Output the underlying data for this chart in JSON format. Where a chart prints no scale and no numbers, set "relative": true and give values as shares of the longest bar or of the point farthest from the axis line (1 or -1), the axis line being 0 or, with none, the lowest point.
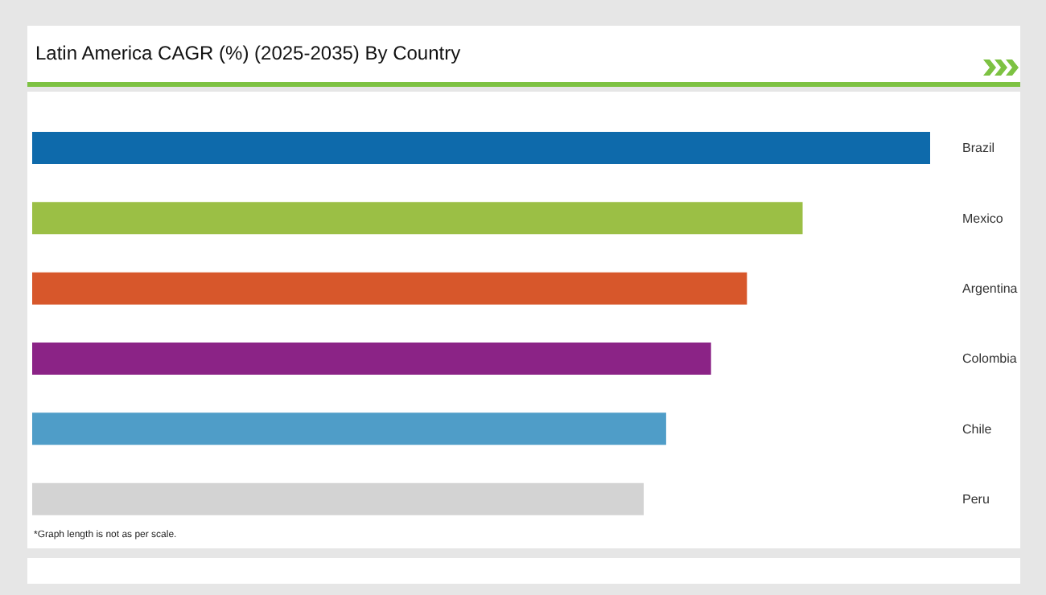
{
  "chart_data": {
    "type": "bar",
    "orientation": "horizontal",
    "relative": true,
    "title": "Latin America CAGR (%) (2025-2035) By Country",
    "categories": [
      "Brazil",
      "Mexico",
      "Argentina",
      "Colombia",
      "Chile",
      "Peru"
    ],
    "values": [
      1,
      0.858,
      0.796,
      0.756,
      0.706,
      0.681
    ],
    "colors": [
      "#0e6aab",
      "#9bbf45",
      "#d7572b",
      "#8b2386",
      "#4f9dc8",
      "#d3d3d3"
    ],
    "annotations": [
      "*Graph length is not as per scale."
    ]
  }
}
